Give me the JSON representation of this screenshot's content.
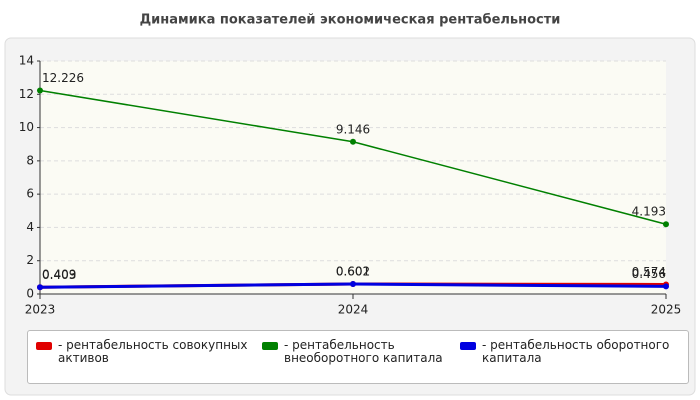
{
  "chart_data": {
    "type": "line",
    "title": "Динамика показателей экономическая рентабельности",
    "categories": [
      "2023",
      "2024",
      "2025"
    ],
    "series": [
      {
        "name": "- рентабельность совокупных активов",
        "color": "#e00000",
        "values": [
          0.409,
          0.602,
          0.574
        ]
      },
      {
        "name": "- рентабельность внеоборотного капитала",
        "color": "#008000",
        "values": [
          12.226,
          9.146,
          4.193
        ]
      },
      {
        "name": "- рентабельность оборотного капитала",
        "color": "#0000e0",
        "values": [
          0.403,
          0.601,
          0.456
        ]
      }
    ],
    "ylim": [
      0,
      14
    ],
    "yticks": [
      0,
      2,
      4,
      6,
      8,
      10,
      12,
      14
    ],
    "grid": true,
    "legend": "bottom"
  }
}
